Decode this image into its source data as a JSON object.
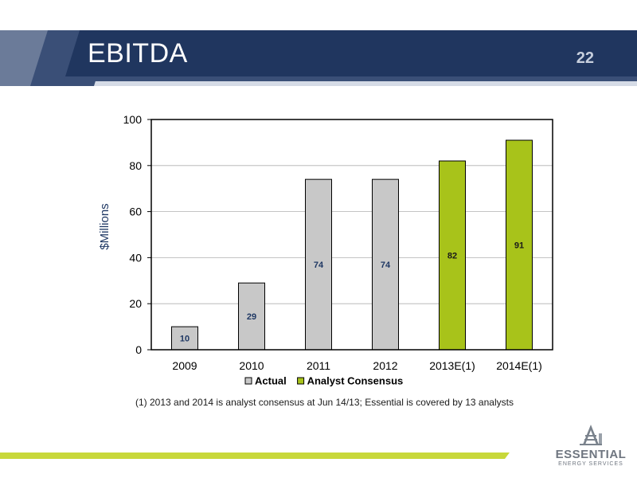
{
  "slide": {
    "title": "EBITDA",
    "page_number": "22",
    "footnote": "(1)  2013 and 2014 is analyst consensus at Jun 14/13; Essential is covered by 13 analysts"
  },
  "logo": {
    "name": "ESSENTIAL",
    "subtitle": "ENERGY SERVICES"
  },
  "colors": {
    "header_dark": "#20365f",
    "header_mid": "#3a4f77",
    "header_light": "#d5dbe6",
    "actual_bar": "#c8c8c8",
    "consensus_bar": "#a8c31a",
    "bottom_bar": "#c8d83a",
    "axis_label": "#1f3864",
    "value_label": "#1f3864"
  },
  "chart_data": {
    "type": "bar",
    "title": "",
    "xlabel": "",
    "ylabel": "$Millions",
    "ylim": [
      0,
      100
    ],
    "yticks": [
      "0",
      "20",
      "40",
      "60",
      "80",
      "100"
    ],
    "categories": [
      "2009",
      "2010",
      "2011",
      "2012",
      "2013E(1)",
      "2014E(1)"
    ],
    "values": [
      10,
      29,
      74,
      74,
      82,
      91
    ],
    "value_labels": [
      "10",
      "29",
      "74",
      "74",
      "82",
      "91"
    ],
    "bar_series": [
      "Actual",
      "Actual",
      "Actual",
      "Actual",
      "Analyst Consensus",
      "Analyst Consensus"
    ],
    "series": [
      {
        "name": "Actual",
        "color": "#c8c8c8",
        "values": [
          10,
          29,
          74,
          74,
          null,
          null
        ]
      },
      {
        "name": "Analyst Consensus",
        "color": "#a8c31a",
        "values": [
          null,
          null,
          null,
          null,
          82,
          91
        ]
      }
    ],
    "legend": [
      "Actual",
      "Analyst Consensus"
    ],
    "legend_position": "bottom",
    "grid": true
  }
}
